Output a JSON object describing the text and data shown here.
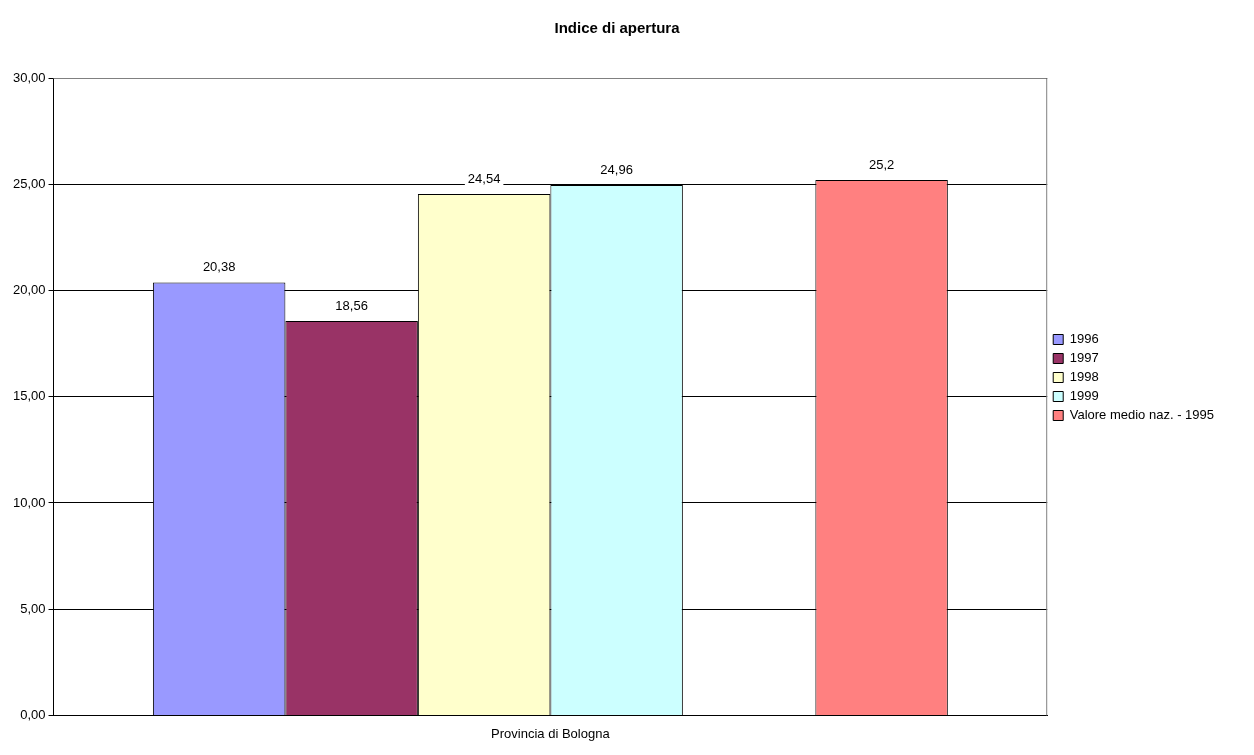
{
  "chart_data": {
    "type": "bar",
    "title": "Indice di apertura",
    "categories": [
      "Provincia di Bologna"
    ],
    "series": [
      {
        "name": "1996",
        "color": "#9999ff",
        "values": [
          20.38
        ],
        "value_labels": [
          "20,38"
        ]
      },
      {
        "name": "1997",
        "color": "#993366",
        "values": [
          18.56
        ],
        "value_labels": [
          "18,56"
        ]
      },
      {
        "name": "1998",
        "color": "#ffffcc",
        "values": [
          24.54
        ],
        "value_labels": [
          "24,54"
        ]
      },
      {
        "name": "1999",
        "color": "#ccffff",
        "values": [
          24.96
        ],
        "value_labels": [
          "24,96"
        ]
      },
      {
        "name": "Valore medio naz. - 1995",
        "color": "#ff8080",
        "values": [
          25.2
        ],
        "value_labels": [
          "25,2"
        ]
      }
    ],
    "ylim": [
      0,
      30
    ],
    "yticks": [
      {
        "value": 0,
        "label": "0,00"
      },
      {
        "value": 5,
        "label": "5,00"
      },
      {
        "value": 10,
        "label": "10,00"
      },
      {
        "value": 15,
        "label": "15,00"
      },
      {
        "value": 20,
        "label": "20,00"
      },
      {
        "value": 25,
        "label": "25,00"
      },
      {
        "value": 30,
        "label": "30,00"
      }
    ],
    "grid": "y",
    "legend": "right"
  }
}
